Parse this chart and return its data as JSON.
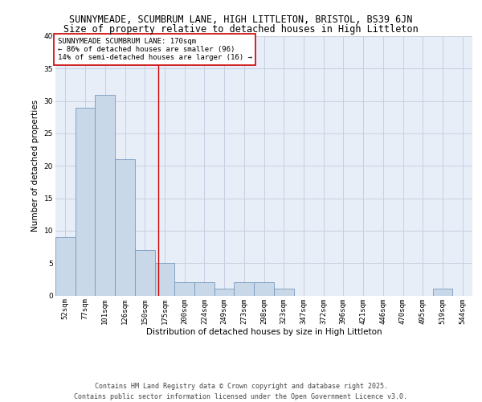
{
  "title1": "SUNNYMEADE, SCUMBRUM LANE, HIGH LITTLETON, BRISTOL, BS39 6JN",
  "title2": "Size of property relative to detached houses in High Littleton",
  "xlabel": "Distribution of detached houses by size in High Littleton",
  "ylabel": "Number of detached properties",
  "categories": [
    "52sqm",
    "77sqm",
    "101sqm",
    "126sqm",
    "150sqm",
    "175sqm",
    "200sqm",
    "224sqm",
    "249sqm",
    "273sqm",
    "298sqm",
    "323sqm",
    "347sqm",
    "372sqm",
    "396sqm",
    "421sqm",
    "446sqm",
    "470sqm",
    "495sqm",
    "519sqm",
    "544sqm"
  ],
  "values": [
    9,
    29,
    31,
    21,
    7,
    5,
    2,
    2,
    1,
    2,
    2,
    1,
    0,
    0,
    0,
    0,
    0,
    0,
    0,
    1,
    0
  ],
  "bar_color": "#c8d8e8",
  "bar_edge_color": "#7799bb",
  "grid_color": "#c8cfe0",
  "background_color": "#ffffff",
  "plot_bg_color": "#e8eef8",
  "annotation_box_text": "SUNNYMEADE SCUMBRUM LANE: 170sqm\n← 86% of detached houses are smaller (96)\n14% of semi-detached houses are larger (16) →",
  "vline_x_index": 4.68,
  "vline_color": "#cc0000",
  "annotation_box_color": "#ffffff",
  "annotation_box_edge_color": "#cc0000",
  "ylim": [
    0,
    40
  ],
  "yticks": [
    0,
    5,
    10,
    15,
    20,
    25,
    30,
    35,
    40
  ],
  "footer_text": "Contains HM Land Registry data © Crown copyright and database right 2025.\nContains public sector information licensed under the Open Government Licence v3.0.",
  "title1_fontsize": 8.5,
  "title2_fontsize": 8.5,
  "annotation_fontsize": 6.5,
  "footer_fontsize": 6.0,
  "axis_label_fontsize": 7.5,
  "tick_fontsize": 6.5,
  "ylabel_fontsize": 7.5
}
